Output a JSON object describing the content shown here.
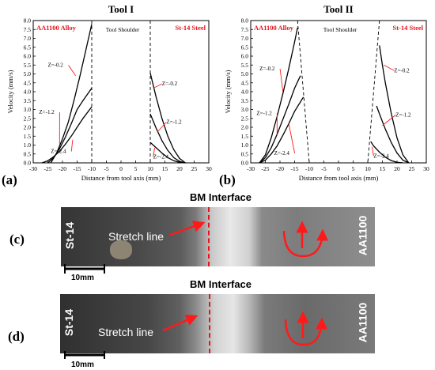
{
  "panel_letters": {
    "a": "(a)",
    "b": "(b)",
    "c": "(c)",
    "d": "(d)"
  },
  "chart_data": [
    {
      "type": "line",
      "title": "Tool I",
      "xlabel": "Distance from tool axis (mm)",
      "ylabel": "Velocity (mm/s)",
      "xlim": [
        -30,
        30
      ],
      "ylim": [
        0,
        8
      ],
      "xticks": [
        "-30",
        "-25",
        "-20",
        "-15",
        "-10",
        "-5",
        "0",
        "5",
        "10",
        "15",
        "20",
        "25",
        "30"
      ],
      "yticks": [
        "0.0",
        "0.5",
        "1.0",
        "1.5",
        "2.0",
        "2.5",
        "3.0",
        "3.5",
        "4.0",
        "4.5",
        "5.0",
        "5.5",
        "6.0",
        "6.5",
        "7.0",
        "7.5",
        "8.0"
      ],
      "annotations": {
        "left_material": "AA1100 Alloy",
        "right_material": "St-14 Steel",
        "center": "Tool Shoulder"
      },
      "curve_labels": [
        "Z=-0.2",
        "Z=-1.2",
        "Z=-2.4"
      ],
      "shoulder_lines": [
        -10,
        10
      ],
      "series": [
        {
          "name": "Z=-0.2",
          "left": {
            "x": [
              -24,
              -22,
              -20,
              -18,
              -16,
              -14,
              -12,
              -10
            ],
            "y": [
              0.0,
              0.55,
              1.35,
              2.3,
              3.55,
              4.9,
              6.35,
              7.8
            ]
          },
          "right": {
            "x": [
              10,
              12,
              14,
              16,
              18,
              20,
              22
            ],
            "y": [
              5.05,
              3.7,
              2.5,
              1.5,
              0.75,
              0.25,
              0.0
            ]
          }
        },
        {
          "name": "Z=-1.2",
          "left": {
            "x": [
              -25,
              -23,
              -21,
              -19,
              -17,
              -15,
              -13,
              -10
            ],
            "y": [
              0.0,
              0.3,
              0.8,
              1.45,
              2.2,
              3.0,
              3.5,
              4.2
            ]
          },
          "right": {
            "x": [
              10,
              12,
              14,
              16,
              18,
              20,
              22
            ],
            "y": [
              2.75,
              1.95,
              1.25,
              0.7,
              0.3,
              0.08,
              0.0
            ]
          }
        },
        {
          "name": "Z=-2.4",
          "left": {
            "x": [
              -27,
              -25,
              -23,
              -21,
              -19,
              -17,
              -15,
              -13,
              -10
            ],
            "y": [
              0.0,
              0.12,
              0.35,
              0.65,
              1.05,
              1.5,
              2.0,
              2.5,
              3.15
            ]
          },
          "right": {
            "x": [
              10,
              12,
              14,
              16,
              18,
              20,
              22
            ],
            "y": [
              1.15,
              0.85,
              0.55,
              0.3,
              0.12,
              0.03,
              0.0
            ]
          }
        }
      ]
    },
    {
      "type": "line",
      "title": "Tool II",
      "xlabel": "Distance from tool axis (mm)",
      "ylabel": "Velocity (mm/s)",
      "xlim": [
        -30,
        30
      ],
      "ylim": [
        0,
        8
      ],
      "xticks": [
        "-30",
        "-25",
        "-20",
        "-15",
        "-10",
        "-5",
        "0",
        "5",
        "10",
        "15",
        "20",
        "25",
        "30"
      ],
      "yticks": [
        "0.0",
        "0.5",
        "1.0",
        "1.5",
        "2.0",
        "2.5",
        "3.0",
        "3.5",
        "4.0",
        "4.5",
        "5.0",
        "5.5",
        "6.0",
        "6.5",
        "7.0",
        "7.5",
        "8.0"
      ],
      "annotations": {
        "left_material": "AA1100 Alloy",
        "right_material": "St-14 Steel",
        "center": "Tool Shoulder"
      },
      "curve_labels": [
        "Z=-0.2",
        "Z=-1.2",
        "Z=-2.4"
      ],
      "shoulder_taper": {
        "left_top": -14,
        "left_bottom": -10,
        "right_top": 14,
        "right_bottom": 10
      },
      "series": [
        {
          "name": "Z=-0.2",
          "left": {
            "x": [
              -27,
              -25,
              -23,
              -21,
              -19,
              -17,
              -15,
              -14
            ],
            "y": [
              0.0,
              0.45,
              1.4,
              2.6,
              3.9,
              5.3,
              6.8,
              7.6
            ]
          },
          "right": {
            "x": [
              14,
              15,
              16,
              18,
              20,
              22,
              24
            ],
            "y": [
              6.6,
              5.5,
              4.5,
              2.8,
              1.4,
              0.45,
              0.0
            ]
          }
        },
        {
          "name": "Z=-1.2",
          "left": {
            "x": [
              -27,
              -25,
              -23,
              -21,
              -19,
              -17,
              -15,
              -13
            ],
            "y": [
              0.0,
              0.3,
              0.85,
              1.6,
              2.45,
              3.3,
              4.2,
              4.9
            ]
          },
          "right": {
            "x": [
              13,
              14,
              16,
              18,
              20,
              22,
              24
            ],
            "y": [
              3.2,
              2.75,
              1.9,
              1.15,
              0.55,
              0.15,
              0.0
            ]
          }
        },
        {
          "name": "Z=-2.4",
          "left": {
            "x": [
              -27,
              -25,
              -23,
              -21,
              -19,
              -17,
              -15,
              -12
            ],
            "y": [
              0.0,
              0.15,
              0.5,
              0.95,
              1.55,
              2.2,
              2.9,
              3.7
            ]
          },
          "right": {
            "x": [
              11,
              12,
              14,
              16,
              18,
              20,
              22
            ],
            "y": [
              1.2,
              0.95,
              0.6,
              0.32,
              0.13,
              0.03,
              0.0
            ]
          }
        }
      ]
    }
  ],
  "photos": [
    {
      "top_label": "BM Interface",
      "left_material": "St-14",
      "right_material": "AA1100",
      "stretch": "Stretch line",
      "scale": "10mm"
    },
    {
      "top_label": "BM Interface",
      "left_material": "St-14",
      "right_material": "AA1100",
      "stretch": "Stretch line",
      "scale": "10mm"
    }
  ],
  "colors": {
    "annotation_red": "#e8141a",
    "arrow_red": "#ff1a1a",
    "photo_steel": "#3c3c3c",
    "photo_al": "#9a9a9a"
  }
}
